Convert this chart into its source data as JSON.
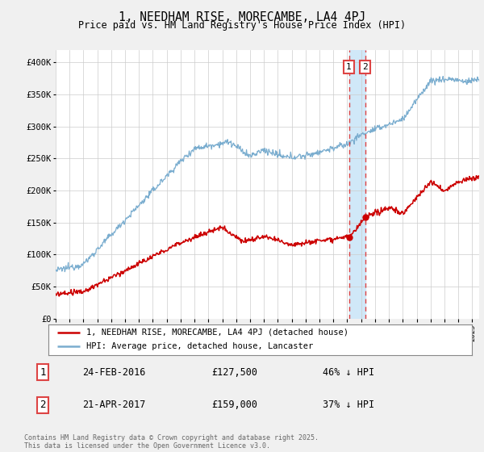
{
  "title": "1, NEEDHAM RISE, MORECAMBE, LA4 4PJ",
  "subtitle": "Price paid vs. HM Land Registry's House Price Index (HPI)",
  "ylim": [
    0,
    420000
  ],
  "yticks": [
    0,
    50000,
    100000,
    150000,
    200000,
    250000,
    300000,
    350000,
    400000
  ],
  "ytick_labels": [
    "£0",
    "£50K",
    "£100K",
    "£150K",
    "£200K",
    "£250K",
    "£300K",
    "£350K",
    "£400K"
  ],
  "hpi_color": "#7aadcf",
  "price_color": "#cc0000",
  "vline_color": "#dd4444",
  "shade_color": "#d0e8f8",
  "transaction1_x": 2016.12,
  "transaction1_y": 127500,
  "transaction2_x": 2017.28,
  "transaction2_y": 159000,
  "legend_line1": "1, NEEDHAM RISE, MORECAMBE, LA4 4PJ (detached house)",
  "legend_line2": "HPI: Average price, detached house, Lancaster",
  "footnote": "Contains HM Land Registry data © Crown copyright and database right 2025.\nThis data is licensed under the Open Government Licence v3.0.",
  "table": [
    {
      "num": "1",
      "date": "24-FEB-2016",
      "price": "£127,500",
      "hpi": "46% ↓ HPI"
    },
    {
      "num": "2",
      "date": "21-APR-2017",
      "price": "£159,000",
      "hpi": "37% ↓ HPI"
    }
  ],
  "background_color": "#f0f0f0",
  "plot_bg_color": "#ffffff",
  "xlim_start": 1995,
  "xlim_end": 2025.5
}
